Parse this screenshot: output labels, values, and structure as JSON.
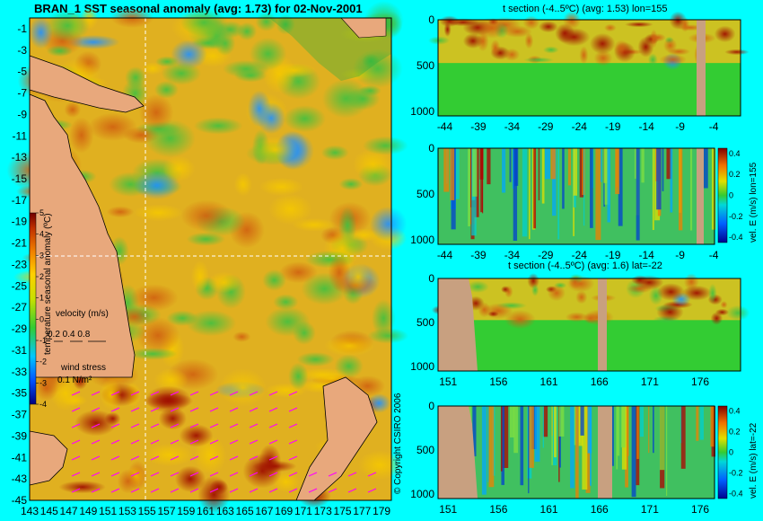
{
  "titles": {
    "main": "BRAN_1 SST seasonal anomaly (avg: 1.73) for 02-Nov-2001",
    "panel1": "t section (-4..5ºC) (avg: 1.53) lon=155",
    "panel3": "t section (-4..5ºC) (avg: 1.6) lat=-22"
  },
  "colorbar": {
    "label": "temperature seasonal anomaly (ºC)",
    "ticks": [
      "5",
      "4",
      "3",
      "2",
      "1",
      "0",
      "-1",
      "-2",
      "-3",
      "-4"
    ]
  },
  "vel_colorbar": {
    "label1": "vel. E (m/s) lon=155",
    "label2": "vel. E (m/s) lat=-22",
    "ticks": [
      "0.4",
      "0.2",
      "0",
      "-0.2",
      "-0.4"
    ]
  },
  "velocity_legend": {
    "label": "velocity (m/s)",
    "values": "0.2 0.4 0.8"
  },
  "wind_legend": {
    "label": "wind stress",
    "value": "0.1 N/m²"
  },
  "copyright": "© Copyright CSIRO 2006",
  "colors": {
    "background": "#00ffff",
    "land": "#e8a87c",
    "section_land": "#c8a080",
    "anomaly_green": "#33cc33",
    "warm_anomaly": "#f0a020"
  },
  "chart_data": [
    {
      "type": "heatmap",
      "title": "BRAN_1 SST seasonal anomaly (avg: 1.73) for 02-Nov-2001",
      "x_ticks": [
        "143",
        "145",
        "147",
        "149",
        "151",
        "153",
        "155",
        "157",
        "159",
        "161",
        "163",
        "165",
        "167",
        "169",
        "171",
        "173",
        "175",
        "177",
        "179"
      ],
      "y_ticks": [
        "-1",
        "-3",
        "-5",
        "-7",
        "-9",
        "-11",
        "-13",
        "-15",
        "-17",
        "-19",
        "-21",
        "-23",
        "-25",
        "-27",
        "-29",
        "-31",
        "-33",
        "-35",
        "-37",
        "-39",
        "-41",
        "-43",
        "-45"
      ],
      "xlim": [
        143,
        180
      ],
      "ylim": [
        -45,
        0
      ],
      "colorbar_range": [
        -4,
        5
      ],
      "crosshair": {
        "lon": 155,
        "lat": -22
      }
    },
    {
      "type": "heatmap",
      "title": "t section (-4..5ºC) (avg: 1.53) lon=155",
      "x_ticks": [
        "-44",
        "-39",
        "-34",
        "-29",
        "-24",
        "-19",
        "-14",
        "-9",
        "-4"
      ],
      "y_ticks": [
        "0",
        "500",
        "1000"
      ],
      "xlim": [
        -45,
        0
      ],
      "ylim": [
        1050,
        0
      ]
    },
    {
      "type": "heatmap",
      "title": "",
      "colorbar_label": "vel. E (m/s) lon=155",
      "x_ticks": [
        "-44",
        "-39",
        "-34",
        "-29",
        "-24",
        "-19",
        "-14",
        "-9",
        "-4"
      ],
      "y_ticks": [
        "0",
        "500",
        "1000"
      ],
      "xlim": [
        -45,
        0
      ],
      "ylim": [
        1050,
        0
      ],
      "colorbar_range": [
        -0.4,
        0.4
      ]
    },
    {
      "type": "heatmap",
      "title": "t section (-4..5ºC) (avg: 1.6) lat=-22",
      "x_ticks": [
        "151",
        "156",
        "161",
        "166",
        "171",
        "176"
      ],
      "y_ticks": [
        "0",
        "500",
        "1000"
      ],
      "xlim": [
        150,
        180
      ],
      "ylim": [
        1050,
        0
      ]
    },
    {
      "type": "heatmap",
      "title": "",
      "colorbar_label": "vel. E (m/s) lat=-22",
      "x_ticks": [
        "151",
        "156",
        "161",
        "166",
        "171",
        "176"
      ],
      "y_ticks": [
        "0",
        "500",
        "1000"
      ],
      "xlim": [
        150,
        180
      ],
      "ylim": [
        1050,
        0
      ],
      "colorbar_range": [
        -0.4,
        0.4
      ]
    }
  ]
}
